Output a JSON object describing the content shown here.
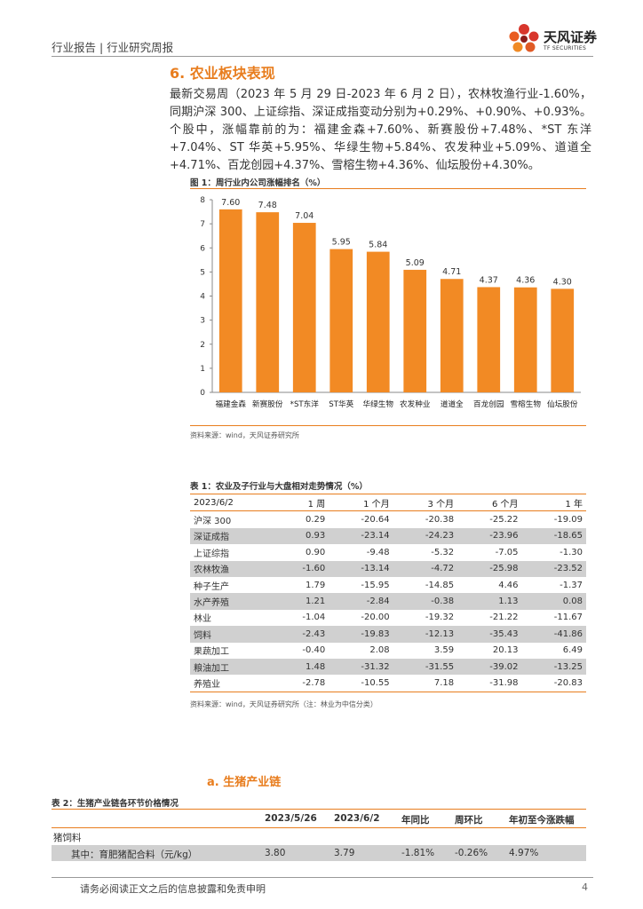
{
  "header": {
    "title": "行业报告 | 行业研究周报"
  },
  "logo": {
    "name_cn": "天风证券",
    "name_en": "TF SECURITIES"
  },
  "section": {
    "title": "6. 农业板块表现",
    "paragraph": "最新交易周（2023 年 5 月 29 日-2023 年 6 月 2 日），农林牧渔行业-1.60%，同期沪深 300、上证综指、深证成指变动分别为+0.29%、+0.90%、+0.93%。个股中，涨幅靠前的为：福建金森+7.60%、新赛股份+7.48%、*ST 东洋+7.04%、ST 华英+5.95%、华绿生物+5.84%、农发种业+5.09%、道道全+4.71%、百龙创园+4.37%、雪榕生物+4.36%、仙坛股份+4.30%。"
  },
  "figure1": {
    "title": "图 1：周行业内公司涨幅排名（%）",
    "source": "资料来源：wind，天风证券研究所"
  },
  "chart_data": {
    "type": "bar",
    "title": "图 1：周行业内公司涨幅排名（%）",
    "categories": [
      "福建金森",
      "新赛股份",
      "*ST东洋",
      "ST华英",
      "华绿生物",
      "农发种业",
      "道道全",
      "百龙创园",
      "雪榕生物",
      "仙坛股份"
    ],
    "values": [
      7.6,
      7.48,
      7.04,
      5.95,
      5.84,
      5.09,
      4.71,
      4.37,
      4.36,
      4.3
    ],
    "value_labels": [
      "7.60",
      "7.48",
      "7.04",
      "5.95",
      "5.84",
      "5.09",
      "4.71",
      "4.37",
      "4.36",
      "4.30"
    ],
    "yticks": [
      "0",
      "1",
      "2",
      "3",
      "4",
      "5",
      "6",
      "7",
      "8"
    ],
    "ylim": [
      0,
      8
    ],
    "xlabel": "",
    "ylabel": "",
    "color": "#f28a24",
    "grid": false
  },
  "table1": {
    "title": "表 1：农业及子行业与大盘相对走势情况（%）",
    "headers": [
      "2023/6/2",
      "1 周",
      "1 个月",
      "3 个月",
      "6 个月",
      "1 年"
    ],
    "rows": [
      [
        "沪深 300",
        "0.29",
        "-20.64",
        "-20.38",
        "-25.22",
        "-19.09"
      ],
      [
        "深证成指",
        "0.93",
        "-23.14",
        "-24.23",
        "-23.96",
        "-18.65"
      ],
      [
        "上证综指",
        "0.90",
        "-9.48",
        "-5.32",
        "-7.05",
        "-1.30"
      ],
      [
        "农林牧渔",
        "-1.60",
        "-13.14",
        "-4.72",
        "-25.98",
        "-23.52"
      ],
      [
        "种子生产",
        "1.79",
        "-15.95",
        "-14.85",
        "4.46",
        "-1.37"
      ],
      [
        "水产养殖",
        "1.21",
        "-2.84",
        "-0.38",
        "1.13",
        "0.08"
      ],
      [
        "林业",
        "-1.04",
        "-20.00",
        "-19.32",
        "-21.22",
        "-11.67"
      ],
      [
        "饲料",
        "-2.43",
        "-19.83",
        "-12.13",
        "-35.43",
        "-41.86"
      ],
      [
        "果蔬加工",
        "-0.40",
        "2.08",
        "3.59",
        "20.13",
        "6.49"
      ],
      [
        "粮油加工",
        "1.48",
        "-31.32",
        "-31.55",
        "-39.02",
        "-13.25"
      ],
      [
        "养殖业",
        "-2.78",
        "-10.55",
        "7.18",
        "-31.98",
        "-20.83"
      ]
    ],
    "source": "资料来源：wind，天风证券研究所（注：林业为中信分类）"
  },
  "subsection": {
    "title": "a.   生猪产业链"
  },
  "table2": {
    "title": "表 2：生猪产业链各环节价格情况",
    "headers": [
      "2023/5/26",
      "2023/6/2",
      "年同比",
      "周环比",
      "年初至今涨跌幅"
    ],
    "group_label": "猪饲料",
    "row": [
      "其中：育肥猪配合料（元/kg）",
      "3.80",
      "3.79",
      "-1.81%",
      "-0.26%",
      "4.97%"
    ]
  },
  "footer": {
    "disclaimer": "请务必阅读正文之后的信息披露和免责申明",
    "page": "4"
  }
}
